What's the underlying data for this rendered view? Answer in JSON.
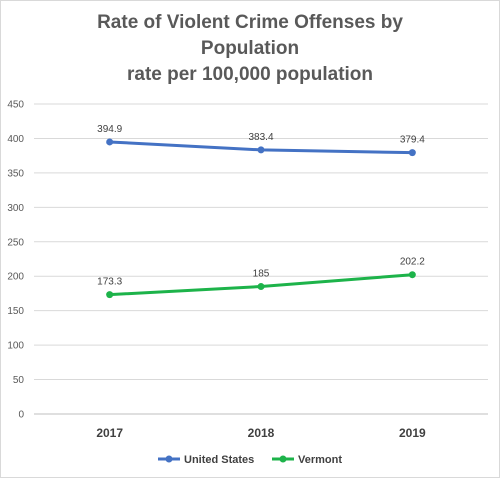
{
  "chart_data": {
    "type": "line",
    "title_lines": [
      "Rate of Violent Crime Offenses by",
      "Population",
      "rate per 100,000 population"
    ],
    "categories": [
      "2017",
      "2018",
      "2019"
    ],
    "series": [
      {
        "name": "United States",
        "values": [
          394.9,
          383.4,
          379.4
        ],
        "labels": [
          "394.9",
          "383.4",
          "379.4"
        ],
        "color": "#4472C4"
      },
      {
        "name": "Vermont",
        "values": [
          173.3,
          185,
          202.2
        ],
        "labels": [
          "173.3",
          "185",
          "202.2"
        ],
        "color": "#1DB34A"
      }
    ],
    "ylim": [
      0,
      450
    ],
    "yticks": [
      "0",
      "50",
      "100",
      "150",
      "200",
      "250",
      "300",
      "350",
      "400",
      "450"
    ],
    "grid": true,
    "legend": "bottom"
  }
}
